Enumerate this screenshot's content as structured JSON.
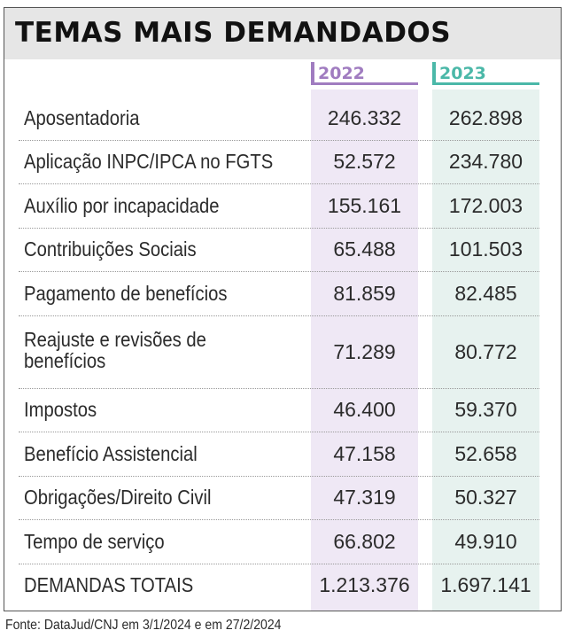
{
  "title": "TEMAS MAIS DEMANDADOS",
  "source": "Fonte: DataJud/CNJ em 3/1/2024 e em 27/2/2024",
  "colors": {
    "year_2022": "#a07cc0",
    "year_2023": "#4bb8a8",
    "col_2022_bg": "#efe8f5",
    "col_2023_bg": "#e7f2ef",
    "header_bg": "#e6e6e6"
  },
  "chart_data": {
    "type": "table",
    "title": "TEMAS MAIS DEMANDADOS",
    "columns": [
      "2022",
      "2023"
    ],
    "rows": [
      {
        "label": "Aposentadoria",
        "v2022": "246.332",
        "v2023": "262.898"
      },
      {
        "label": "Aplicação INPC/IPCA no FGTS",
        "v2022": "52.572",
        "v2023": "234.780"
      },
      {
        "label": "Auxílio por incapacidade",
        "v2022": "155.161",
        "v2023": "172.003"
      },
      {
        "label": "Contribuições Sociais",
        "v2022": "65.488",
        "v2023": "101.503"
      },
      {
        "label": "Pagamento de benefícios",
        "v2022": "81.859",
        "v2023": "82.485"
      },
      {
        "label": "Reajuste e revisões de benefícios",
        "label_lines": [
          "Reajuste e revisões de",
          "benefícios"
        ],
        "v2022": "71.289",
        "v2023": "80.772"
      },
      {
        "label": "Impostos",
        "v2022": "46.400",
        "v2023": "59.370"
      },
      {
        "label": "Benefício Assistencial",
        "v2022": "47.158",
        "v2023": "52.658"
      },
      {
        "label": "Obrigações/Direito Civil",
        "v2022": "47.319",
        "v2023": "50.327"
      },
      {
        "label": "Tempo de serviço",
        "v2022": "66.802",
        "v2023": "49.910"
      },
      {
        "label": "DEMANDAS TOTAIS",
        "v2022": "1.213.376",
        "v2023": "1.697.141"
      }
    ]
  }
}
